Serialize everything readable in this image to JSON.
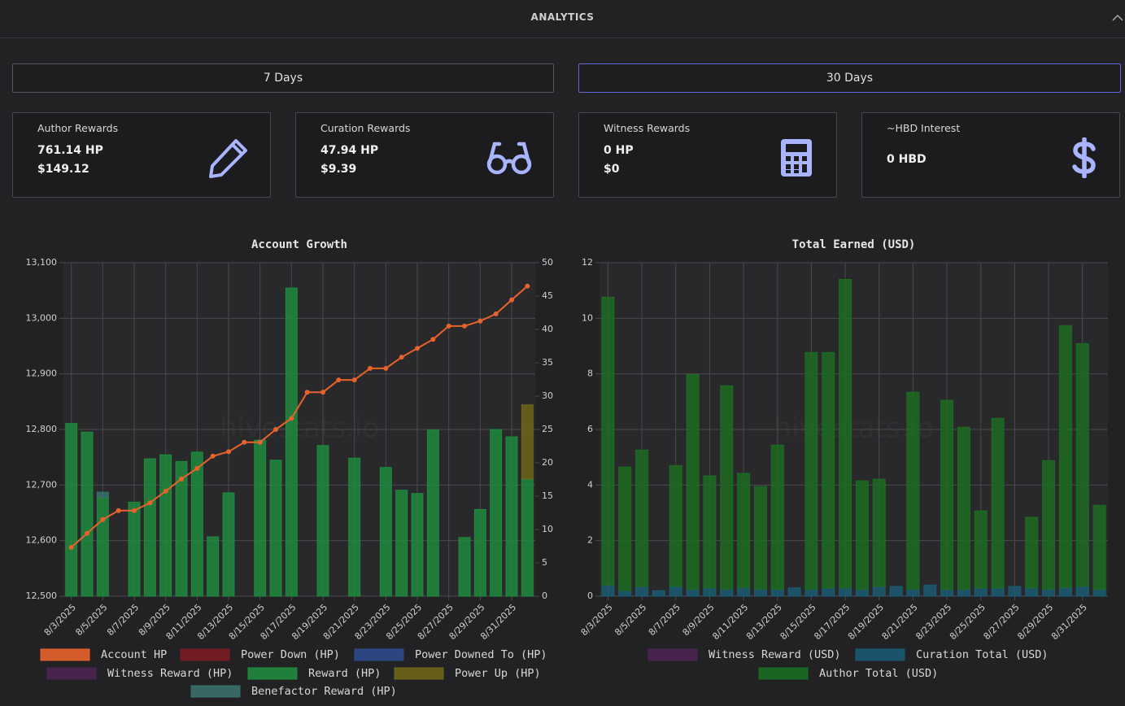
{
  "header": {
    "title": "ANALYTICS"
  },
  "buttons": [
    "7 Days",
    "30 Days"
  ],
  "cards": [
    {
      "title": "Author Rewards",
      "lines": [
        "761.14 HP",
        "$149.12"
      ]
    },
    {
      "title": "Curation Rewards",
      "lines": [
        "47.94 HP",
        "$9.39"
      ]
    },
    {
      "title": "Witness Rewards",
      "lines": [
        "0 HP",
        "$0"
      ]
    },
    {
      "title": "~HBD Interest",
      "lines": [
        "0 HBD"
      ]
    }
  ],
  "chart_data": [
    {
      "type": "mixed",
      "title": "Account Growth",
      "watermark": "hivestats.io",
      "categories": [
        "8/3/2025",
        null,
        "8/5/2025",
        null,
        "8/7/2025",
        null,
        "8/9/2025",
        null,
        "8/11/2025",
        null,
        "8/13/2025",
        null,
        "8/15/2025",
        null,
        "8/17/2025",
        null,
        "8/19/2025",
        null,
        "8/21/2025",
        null,
        "8/23/2025",
        null,
        "8/25/2025",
        null,
        "8/27/2025",
        null,
        "8/29/2025",
        null,
        "8/31/2025",
        null
      ],
      "ylim": [
        12500,
        13100
      ],
      "yticks": [
        {
          "value": 12500,
          "label": "12,500"
        },
        {
          "value": 12600,
          "label": "12,600"
        },
        {
          "value": 12700,
          "label": "12,700"
        },
        {
          "value": 12800,
          "label": "12,800"
        },
        {
          "value": 12900,
          "label": "12,900"
        },
        {
          "value": 13000,
          "label": "13,000"
        },
        {
          "value": 13100,
          "label": "13,100"
        }
      ],
      "y2lim": [
        0,
        50
      ],
      "y2ticks": [
        0,
        5,
        10,
        15,
        20,
        25,
        30,
        35,
        40,
        45,
        50
      ],
      "grid": true,
      "series": [
        {
          "name": "Account HP",
          "type": "line",
          "color": "#e8622c",
          "values": [
            12588,
            12613,
            12638,
            12654,
            12654,
            12668,
            12689,
            12711,
            12730,
            12752,
            12760,
            12777,
            12777,
            12800,
            12820,
            12867,
            12867,
            12889,
            12889,
            12910,
            12910,
            12930,
            12946,
            12962,
            12986,
            12986,
            12995,
            13008,
            13033,
            13058
          ]
        },
        {
          "name": "Power Down (HP)",
          "type": "bar",
          "axis": "y2",
          "color": "#7a1c22",
          "values": [
            null,
            null,
            null,
            null,
            null,
            null,
            null,
            null,
            null,
            null,
            null,
            null,
            null,
            null,
            null,
            null,
            null,
            null,
            null,
            null,
            null,
            null,
            null,
            null,
            null,
            null,
            null,
            null,
            null,
            null
          ]
        },
        {
          "name": "Power Downed To (HP)",
          "type": "bar",
          "axis": "y2",
          "color": "#2e4a8c",
          "values": [
            null,
            null,
            null,
            null,
            null,
            null,
            null,
            null,
            null,
            null,
            null,
            null,
            null,
            null,
            null,
            null,
            null,
            null,
            null,
            null,
            null,
            null,
            null,
            null,
            null,
            null,
            null,
            null,
            null,
            null
          ]
        },
        {
          "name": "Witness Reward (HP)",
          "type": "bar",
          "axis": "y2",
          "color": "#4a2350",
          "values": [
            null,
            null,
            null,
            null,
            null,
            null,
            null,
            null,
            null,
            null,
            null,
            null,
            null,
            null,
            null,
            null,
            null,
            null,
            null,
            null,
            null,
            null,
            null,
            null,
            null,
            null,
            null,
            null,
            null,
            null
          ]
        },
        {
          "name": "Reward (HP)",
          "type": "bar",
          "axis": "y2",
          "color": "#1f8a3e",
          "values": [
            25.9,
            24.6,
            14.8,
            null,
            14.1,
            20.6,
            21.2,
            20.2,
            21.6,
            8.9,
            15.5,
            null,
            23.4,
            20.4,
            46.2,
            null,
            22.6,
            null,
            20.7,
            null,
            19.3,
            15.9,
            15.4,
            24.9,
            null,
            8.8,
            13.0,
            25.0,
            23.9,
            17.6
          ]
        },
        {
          "name": "Power Up (HP)",
          "type": "bar",
          "axis": "y2",
          "color": "#6e6518",
          "values": [
            null,
            null,
            null,
            null,
            null,
            null,
            null,
            null,
            null,
            null,
            null,
            null,
            null,
            null,
            null,
            null,
            null,
            null,
            null,
            null,
            null,
            null,
            null,
            null,
            null,
            null,
            null,
            null,
            null,
            11.1
          ]
        },
        {
          "name": "Benefactor Reward (HP)",
          "type": "bar",
          "axis": "y2",
          "color": "#3b6f6c",
          "values": [
            null,
            null,
            0.8,
            null,
            null,
            null,
            null,
            null,
            null,
            null,
            null,
            null,
            null,
            null,
            null,
            null,
            null,
            null,
            null,
            null,
            null,
            null,
            null,
            null,
            null,
            null,
            null,
            null,
            null,
            null
          ]
        }
      ]
    },
    {
      "type": "bar",
      "title": "Total Earned (USD)",
      "watermark": "hivestats.io",
      "stacked": true,
      "categories": [
        "8/3/2025",
        null,
        "8/5/2025",
        null,
        "8/7/2025",
        null,
        "8/9/2025",
        null,
        "8/11/2025",
        null,
        "8/13/2025",
        null,
        "8/15/2025",
        null,
        "8/17/2025",
        null,
        "8/19/2025",
        null,
        "8/21/2025",
        null,
        "8/23/2025",
        null,
        "8/25/2025",
        null,
        "8/27/2025",
        null,
        "8/29/2025",
        null,
        "8/31/2025",
        null
      ],
      "ylim": [
        0,
        12
      ],
      "yticks": [
        0,
        2,
        4,
        6,
        8,
        10,
        12
      ],
      "grid": true,
      "series": [
        {
          "name": "Witness Reward (USD)",
          "color": "#4a2350",
          "values": [
            null,
            null,
            null,
            null,
            null,
            null,
            null,
            null,
            null,
            null,
            null,
            null,
            null,
            null,
            null,
            null,
            null,
            null,
            null,
            null,
            null,
            null,
            null,
            null,
            null,
            null,
            null,
            null,
            null,
            null
          ]
        },
        {
          "name": "Curation Total (USD)",
          "color": "#1b5a72",
          "values": [
            0.4,
            0.2,
            0.35,
            0.2,
            0.35,
            0.25,
            0.3,
            0.25,
            0.3,
            0.25,
            0.25,
            0.3,
            0.25,
            0.3,
            0.3,
            0.25,
            0.35,
            0.35,
            0.25,
            0.4,
            0.25,
            0.25,
            0.3,
            0.3,
            0.35,
            0.3,
            0.25,
            0.3,
            0.35,
            0.25
          ]
        },
        {
          "name": "Author Total (USD)",
          "color": "#1c6b22",
          "values": [
            10.36,
            4.45,
            4.91,
            null,
            4.35,
            7.73,
            4.03,
            7.32,
            4.12,
            3.7,
            5.19,
            null,
            8.52,
            8.47,
            11.1,
            3.9,
            3.86,
            null,
            7.09,
            null,
            6.8,
            5.83,
            2.77,
            6.1,
            null,
            2.54,
            4.63,
            9.44,
            8.74,
            3.02
          ]
        }
      ]
    }
  ]
}
